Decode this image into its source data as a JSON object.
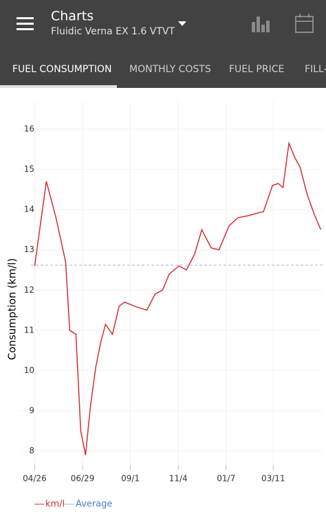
{
  "app_bar": {
    "title": "Charts",
    "subtitle": "Fluidic Verna EX 1.6 VTVT"
  },
  "tabs": [
    "FUEL CONSUMPTION",
    "MONTHLY COSTS",
    "FUEL PRICE",
    "FILL-"
  ],
  "chart_data": {
    "type": "line",
    "y_label": "Consumption (km/l)",
    "x": [
      0,
      15.6,
      28.5,
      41.4,
      46.9,
      55.2,
      61.6,
      68,
      74.5,
      81.8,
      88.3,
      94.7,
      104,
      113,
      120.5,
      133.4,
      150,
      161,
      171,
      180,
      193,
      203,
      214,
      223.5,
      236,
      246.5,
      260,
      272,
      286,
      295,
      306,
      318,
      325.7,
      332,
      340,
      347.7,
      355,
      364,
      373.5,
      382.7
    ],
    "series": [
      {
        "name": "km/l",
        "color": "#d32f2f",
        "values": [
          12.6,
          14.7,
          13.8,
          12.7,
          11.0,
          10.9,
          8.5,
          7.9,
          9.1,
          10.1,
          10.7,
          11.15,
          10.9,
          11.6,
          11.7,
          11.6,
          11.5,
          11.9,
          12.0,
          12.4,
          12.6,
          12.5,
          12.9,
          13.5,
          13.05,
          13.0,
          13.6,
          13.8,
          13.85,
          13.9,
          13.95,
          14.6,
          14.65,
          14.55,
          15.65,
          15.3,
          15.05,
          14.4,
          13.9,
          13.5
        ]
      }
    ],
    "average": {
      "name": "Average",
      "color": "#9fb6dd",
      "value": 12.62
    },
    "xlim": [
      -5,
      385
    ],
    "xticks": [
      {
        "value": 0,
        "label": "04/26"
      },
      {
        "value": 64,
        "label": "06/29"
      },
      {
        "value": 128,
        "label": "09/1"
      },
      {
        "value": 192,
        "label": "11/4"
      },
      {
        "value": 256,
        "label": "01/7"
      },
      {
        "value": 319,
        "label": "03/11"
      }
    ],
    "ylim": [
      7.6,
      16.7
    ],
    "yticks": [
      8,
      9,
      10,
      11,
      12,
      13,
      14,
      15,
      16
    ],
    "grid": true
  }
}
